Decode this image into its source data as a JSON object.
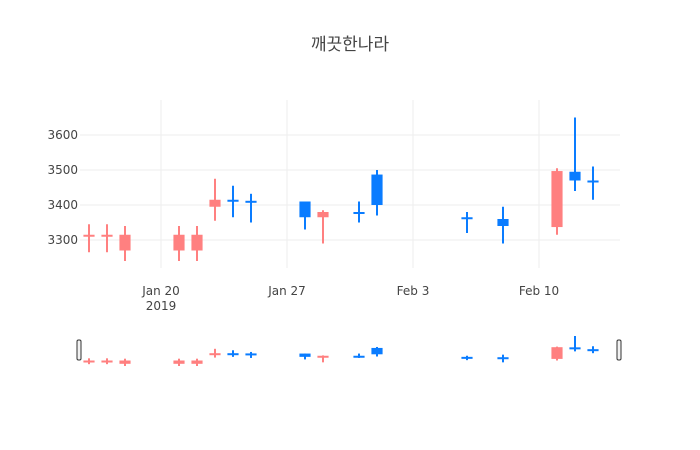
{
  "chart_data": {
    "type": "candlestick",
    "title": "깨끗한나라",
    "increasing_color": "#0a7cff",
    "decreasing_color": "#ff8080",
    "grid": true,
    "range_slider": true,
    "ylim": [
      3220,
      3700
    ],
    "yticks": [
      3300,
      3400,
      3500,
      3600
    ],
    "xticks": [
      {
        "date": "2019-01-20",
        "label": "Jan 20",
        "sublabel": "2019"
      },
      {
        "date": "2019-01-27",
        "label": "Jan 27",
        "sublabel": ""
      },
      {
        "date": "2019-02-03",
        "label": "Feb 3",
        "sublabel": ""
      },
      {
        "date": "2019-02-10",
        "label": "Feb 10",
        "sublabel": ""
      }
    ],
    "x_range": [
      "2019-01-15T12:00",
      "2019-02-14T12:00"
    ],
    "candles": [
      {
        "date": "2019-01-16",
        "open": 3315,
        "high": 3345,
        "low": 3265,
        "close": 3310
      },
      {
        "date": "2019-01-17",
        "open": 3315,
        "high": 3345,
        "low": 3265,
        "close": 3310
      },
      {
        "date": "2019-01-18",
        "open": 3315,
        "high": 3340,
        "low": 3240,
        "close": 3270
      },
      {
        "date": "2019-01-21",
        "open": 3315,
        "high": 3340,
        "low": 3240,
        "close": 3270
      },
      {
        "date": "2019-01-22",
        "open": 3315,
        "high": 3340,
        "low": 3240,
        "close": 3270
      },
      {
        "date": "2019-01-23",
        "open": 3415,
        "high": 3475,
        "low": 3355,
        "close": 3395
      },
      {
        "date": "2019-01-24",
        "open": 3410,
        "high": 3455,
        "low": 3365,
        "close": 3415
      },
      {
        "date": "2019-01-25",
        "open": 3408,
        "high": 3432,
        "low": 3350,
        "close": 3412
      },
      {
        "date": "2019-01-28",
        "open": 3365,
        "high": 3410,
        "low": 3330,
        "close": 3410
      },
      {
        "date": "2019-01-29",
        "open": 3380,
        "high": 3385,
        "low": 3290,
        "close": 3365
      },
      {
        "date": "2019-01-31",
        "open": 3375,
        "high": 3410,
        "low": 3350,
        "close": 3380
      },
      {
        "date": "2019-02-01",
        "open": 3400,
        "high": 3500,
        "low": 3370,
        "close": 3487
      },
      {
        "date": "2019-02-06",
        "open": 3360,
        "high": 3380,
        "low": 3320,
        "close": 3365
      },
      {
        "date": "2019-02-08",
        "open": 3340,
        "high": 3395,
        "low": 3290,
        "close": 3360
      },
      {
        "date": "2019-02-11",
        "open": 3497,
        "high": 3505,
        "low": 3315,
        "close": 3337
      },
      {
        "date": "2019-02-12",
        "open": 3470,
        "high": 3650,
        "low": 3440,
        "close": 3495
      },
      {
        "date": "2019-02-13",
        "open": 3465,
        "high": 3510,
        "low": 3415,
        "close": 3470
      }
    ]
  }
}
